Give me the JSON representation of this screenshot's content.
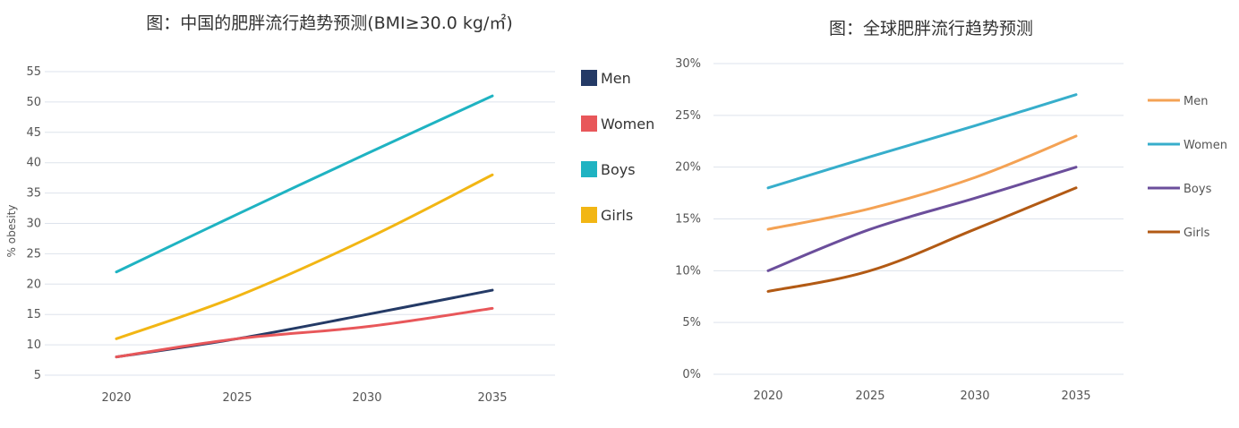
{
  "chart_data": [
    {
      "type": "line",
      "title": "图：中国的肥胖流行趋势预测(BMI≥30.0 kg/㎡)",
      "xlabel": "",
      "ylabel": "% obesity",
      "x": [
        2020,
        2025,
        2030,
        2035
      ],
      "x_tick_labels": [
        "2020",
        "2025",
        "2030",
        "2035"
      ],
      "y_tick_labels": [
        "5",
        "10",
        "15",
        "20",
        "25",
        "30",
        "35",
        "40",
        "45",
        "50",
        "55"
      ],
      "ylim": [
        5,
        55
      ],
      "grid": true,
      "legend": "right",
      "series": [
        {
          "name": "Men",
          "color": "#243a66",
          "values": [
            8,
            11,
            15,
            19
          ]
        },
        {
          "name": "Women",
          "color": "#e8575a",
          "values": [
            8,
            11,
            13,
            16
          ]
        },
        {
          "name": "Boys",
          "color": "#1fb3c2",
          "values": [
            22,
            31.5,
            41.5,
            51
          ]
        },
        {
          "name": "Girls",
          "color": "#f2b614",
          "values": [
            11,
            18,
            27.5,
            38
          ]
        }
      ]
    },
    {
      "type": "line",
      "title": "图：全球肥胖流行趋势预测",
      "xlabel": "",
      "ylabel": "",
      "x": [
        2020,
        2025,
        2030,
        2035
      ],
      "x_tick_labels": [
        "2020",
        "2025",
        "2030",
        "2035"
      ],
      "y_tick_labels": [
        "0%",
        "5%",
        "10%",
        "15%",
        "20%",
        "25%",
        "30%"
      ],
      "ylim": [
        0,
        30
      ],
      "grid": true,
      "legend": "right",
      "series": [
        {
          "name": "Men",
          "color": "#f4a254",
          "values": [
            14,
            16,
            19,
            23
          ]
        },
        {
          "name": "Women",
          "color": "#37aecb",
          "values": [
            18,
            21,
            24,
            27
          ]
        },
        {
          "name": "Boys",
          "color": "#6b4e9b",
          "values": [
            10,
            14,
            17,
            20
          ]
        },
        {
          "name": "Girls",
          "color": "#b25a14",
          "values": [
            8,
            10,
            14,
            18
          ]
        }
      ]
    }
  ]
}
